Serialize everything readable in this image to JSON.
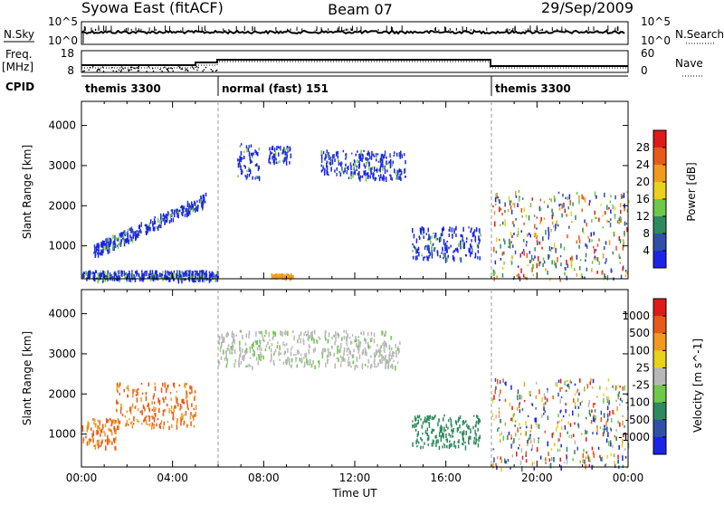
{
  "header": {
    "station": "Syowa East (fitACF)",
    "beam": "Beam 07",
    "date": "29/Sep/2009"
  },
  "top_panels": {
    "nsky_label": "N.Sky",
    "nsky_ticks": [
      "10^5",
      "10^0"
    ],
    "nsearch_label": "N.Search",
    "nsearch_ticks": [
      "10^5",
      "10^0"
    ],
    "freq_label_1": "Freq.",
    "freq_label_2": "[MHz]",
    "freq_ticks": [
      "18",
      "8"
    ],
    "nave_label": "Nave",
    "nave_ticks": [
      "60",
      "0"
    ],
    "cpid_label": "CPID",
    "cpid_modes": [
      {
        "label": "themis 3300",
        "start_hour": 0,
        "end_hour": 6
      },
      {
        "label": "normal (fast) 151",
        "start_hour": 6,
        "end_hour": 18
      },
      {
        "label": "themis 3300",
        "start_hour": 18,
        "end_hour": 24
      }
    ]
  },
  "chart_data": [
    {
      "type": "heatmap",
      "title": "",
      "xlabel": "Time UT",
      "ylabel": "Slant Range [km]",
      "x_ticks": [
        "00:00",
        "04:00",
        "08:00",
        "12:00",
        "16:00",
        "20:00",
        "00:00"
      ],
      "xlim_hours": [
        0,
        24
      ],
      "y_ticks": [
        1000,
        2000,
        3000,
        4000
      ],
      "ylim_km": [
        180,
        4600
      ],
      "colorbar": {
        "label": "Power [dB]",
        "ticks": [
          4,
          8,
          12,
          16,
          20,
          24,
          28
        ],
        "colors": [
          "#1c23e8",
          "#2e50a8",
          "#2e8a5e",
          "#6ec84a",
          "#e8d21a",
          "#f09a1e",
          "#e85a1a",
          "#e01a1a"
        ]
      },
      "echo_regions": [
        {
          "t": [
            0.5,
            5.5
          ],
          "range_km": [
            900,
            2300
          ],
          "level": 1,
          "desc": "diagonal streaks"
        },
        {
          "t": [
            0,
            6
          ],
          "range_km": [
            180,
            400
          ],
          "level": 2,
          "desc": "near-range band"
        },
        {
          "t": [
            6.8,
            7.8
          ],
          "range_km": [
            2700,
            3600
          ],
          "level": 1
        },
        {
          "t": [
            8.2,
            9.2
          ],
          "range_km": [
            3100,
            3500
          ],
          "level": 1
        },
        {
          "t": [
            10.5,
            14.2
          ],
          "range_km": [
            2700,
            3400
          ],
          "level": 1
        },
        {
          "t": [
            8.3,
            9.3
          ],
          "range_km": [
            250,
            320
          ],
          "level": 5
        },
        {
          "t": [
            14.5,
            17.5
          ],
          "range_km": [
            700,
            1500
          ],
          "level": 2
        },
        {
          "t": [
            18.0,
            24.0
          ],
          "range_km": [
            180,
            2400
          ],
          "level": 3,
          "desc": "dense mixed echoes"
        }
      ]
    },
    {
      "type": "heatmap",
      "title": "",
      "xlabel": "Time UT",
      "ylabel": "Slant Range [km]",
      "x_ticks": [
        "00:00",
        "04:00",
        "08:00",
        "12:00",
        "16:00",
        "20:00",
        "00:00"
      ],
      "xlim_hours": [
        0,
        24
      ],
      "y_ticks": [
        1000,
        2000,
        3000,
        4000
      ],
      "ylim_km": [
        180,
        4600
      ],
      "colorbar": {
        "label": "Velocity [m s^-1]",
        "ticks": [
          1000,
          500,
          100,
          25,
          -25,
          -100,
          -500,
          -1000
        ],
        "colors": [
          "#1c23e8",
          "#2e50a8",
          "#2e8a5e",
          "#6ec84a",
          "#b8b8b8",
          "#e8d21a",
          "#f09a1e",
          "#e85a1a",
          "#e01a1a"
        ]
      },
      "echo_regions": [
        {
          "t": [
            0,
            1.5
          ],
          "range_km": [
            700,
            1400
          ],
          "velocity_class": "-500",
          "desc": "red/orange near range"
        },
        {
          "t": [
            1.5,
            5.0
          ],
          "range_km": [
            1200,
            2300
          ],
          "velocity_class": "-500"
        },
        {
          "t": [
            6.0,
            14.0
          ],
          "range_km": [
            2700,
            3600
          ],
          "velocity_class": "25"
        },
        {
          "t": [
            14.5,
            17.5
          ],
          "range_km": [
            700,
            1500
          ],
          "velocity_class": "100"
        },
        {
          "t": [
            18.0,
            24.0
          ],
          "range_km": [
            180,
            2400
          ],
          "velocity_class": "500"
        }
      ]
    }
  ]
}
